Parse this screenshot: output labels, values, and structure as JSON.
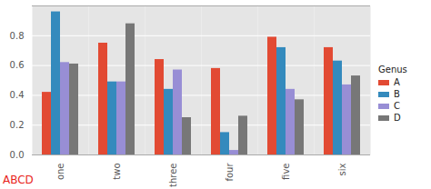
{
  "chart_data": {
    "type": "bar",
    "categories": [
      "one",
      "two",
      "three",
      "four",
      "five",
      "six"
    ],
    "series": [
      {
        "name": "A",
        "color": "#E24A33",
        "values": [
          0.42,
          0.75,
          0.64,
          0.58,
          0.79,
          0.72
        ]
      },
      {
        "name": "B",
        "color": "#348ABD",
        "values": [
          0.96,
          0.49,
          0.44,
          0.15,
          0.72,
          0.63
        ]
      },
      {
        "name": "C",
        "color": "#988ED5",
        "values": [
          0.62,
          0.49,
          0.57,
          0.03,
          0.44,
          0.47
        ]
      },
      {
        "name": "D",
        "color": "#777777",
        "values": [
          0.61,
          0.88,
          0.25,
          0.26,
          0.37,
          0.53
        ]
      }
    ],
    "legend_title": "Genus",
    "legend": "right",
    "annotations": [
      "ABCD"
    ],
    "ylim": [
      0,
      1.0
    ],
    "yticks": [
      {
        "value": 0,
        "label": "0.0"
      },
      {
        "value": 0.2,
        "label": "0.2"
      },
      {
        "value": 0.4,
        "label": "0.4"
      },
      {
        "value": 0.6,
        "label": "0.6"
      },
      {
        "value": 0.8,
        "label": "0.8"
      }
    ],
    "grid": true
  }
}
